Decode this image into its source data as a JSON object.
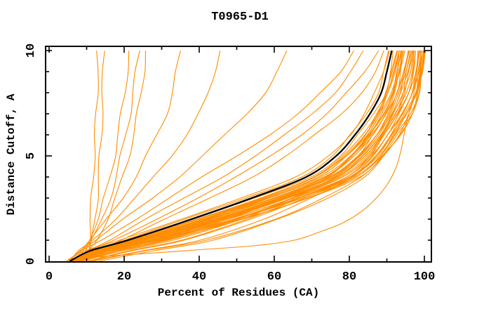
{
  "figure": {
    "background": "#FFFFFF"
  },
  "chart_data": {
    "type": "line",
    "title": "T0965-D1",
    "xlabel": "Percent of Residues (CA)",
    "ylabel": "Distance Cutoff, A",
    "xlim": [
      0,
      100
    ],
    "ylim": [
      0,
      10
    ],
    "x_major_ticks": [
      0,
      20,
      40,
      60,
      80,
      100
    ],
    "x_minor_step": 10,
    "y_major_ticks": [
      0,
      5,
      10
    ],
    "y_minor_step": 1,
    "grid": "off",
    "legend": "none",
    "colors": {
      "model_curves": "#FF8C00",
      "reference_curve": "#000000",
      "axis": "#000000"
    },
    "y_grid": [
      0,
      0.5,
      1,
      2,
      3,
      4,
      5,
      6,
      7,
      8,
      9,
      10
    ],
    "reference_curve": {
      "name": "reference-model",
      "xs": [
        5.5,
        11,
        21,
        38,
        54,
        68.5,
        76.5,
        81.5,
        85.5,
        88.5,
        90,
        91.3
      ]
    },
    "model_curves": [
      {
        "xs": [
          10,
          10.3,
          10.7,
          11,
          11.4,
          11.7,
          12,
          12.3,
          12.6,
          12.8,
          12.9,
          13
        ]
      },
      {
        "xs": [
          10.5,
          11,
          11.5,
          12.2,
          12.8,
          13.2,
          13.6,
          13.9,
          14.1,
          14.3,
          14.4,
          14.5
        ]
      },
      {
        "xs": [
          8,
          9,
          10.5,
          13,
          14.8,
          16.2,
          17.4,
          18.4,
          19.3,
          20.1,
          20.8,
          21.5
        ]
      },
      {
        "xs": [
          8.5,
          9.8,
          11.5,
          14.2,
          16.2,
          17.8,
          19.2,
          20.4,
          21.5,
          22.4,
          23.2,
          24
        ]
      },
      {
        "xs": [
          9,
          10.5,
          12.5,
          15.5,
          17.8,
          19.6,
          21.2,
          22.5,
          23.6,
          24.5,
          25.2,
          25.8
        ]
      },
      {
        "xs": [
          7,
          8.5,
          11,
          15.5,
          19.5,
          23,
          26,
          28.8,
          31.2,
          32.8,
          34,
          35
        ]
      },
      {
        "xs": [
          6,
          8,
          11.5,
          17.5,
          23,
          28,
          32.5,
          36.5,
          40,
          42.5,
          44,
          45.5
        ]
      },
      {
        "xs": [
          5,
          8,
          12.5,
          20,
          27.5,
          34.5,
          41,
          47,
          52.5,
          57.5,
          61,
          63.5
        ]
      },
      {
        "xs": [
          5,
          9,
          14,
          23,
          32,
          41,
          50,
          58.5,
          66.5,
          72.5,
          77.5,
          81
        ]
      },
      {
        "xs": [
          5.5,
          10,
          16,
          26,
          36,
          46,
          55,
          63,
          70,
          76,
          80.5,
          84
        ]
      },
      {
        "xs": [
          6,
          11,
          17.5,
          28.5,
          39.5,
          50,
          59,
          67,
          74,
          79.5,
          84,
          87.5
        ]
      },
      {
        "xs": [
          6,
          12,
          19,
          31,
          43,
          54,
          63,
          71,
          78,
          83,
          87,
          89.5
        ]
      },
      {
        "xs": [
          6,
          12,
          23,
          41,
          57.5,
          72,
          79.5,
          84,
          87.5,
          90,
          91.5,
          92.5
        ]
      },
      {
        "xs": [
          6.5,
          13,
          24.5,
          43.5,
          60.5,
          74.5,
          82,
          86.5,
          90,
          92.5,
          93.5,
          94.5
        ]
      },
      {
        "xs": [
          7,
          14,
          26,
          46,
          63,
          77,
          84.5,
          89,
          92.5,
          95,
          96,
          97
        ]
      },
      {
        "xs": [
          7.5,
          15,
          28,
          49,
          66.5,
          80,
          87,
          91.5,
          95,
          97.5,
          98.5,
          99.5
        ]
      },
      {
        "xs": [
          5.5,
          11.5,
          22,
          39.5,
          56,
          70.5,
          78.5,
          83.5,
          87,
          90,
          91.5,
          92.5
        ]
      },
      {
        "xs": [
          6.5,
          12.5,
          24,
          42.5,
          59,
          73.5,
          81,
          85.5,
          89,
          91.5,
          93,
          94
        ]
      },
      {
        "xs": [
          6.5,
          13.5,
          25,
          45,
          62,
          75.5,
          83,
          87.5,
          91,
          93.5,
          95,
          96
        ]
      },
      {
        "xs": [
          7.5,
          14.5,
          27,
          47.5,
          65,
          78.5,
          85.5,
          90,
          93.5,
          96,
          97.5,
          98.5
        ]
      },
      {
        "xs": [
          7.5,
          15.5,
          29,
          50,
          67.5,
          81.5,
          88.5,
          92.5,
          96,
          98.4,
          99.2,
          99.8
        ]
      },
      {
        "xs": [
          6,
          12,
          22.5,
          40.5,
          57,
          71,
          79,
          84,
          87.5,
          90.5,
          92,
          93
        ]
      },
      {
        "xs": [
          5.5,
          10.5,
          20,
          36.5,
          52.5,
          67,
          75.5,
          80.5,
          84.5,
          87.5,
          89.3,
          90.7
        ]
      },
      {
        "xs": [
          5,
          10,
          19,
          35,
          51,
          66,
          74.5,
          80,
          84,
          87,
          89,
          90.4
        ]
      },
      {
        "xs": [
          5.5,
          11,
          21.5,
          38.5,
          55,
          69.5,
          77.5,
          82.5,
          86.5,
          89.5,
          91,
          92
        ]
      },
      {
        "xs": [
          6.5,
          13,
          25,
          44,
          61,
          75,
          82.5,
          87,
          90.5,
          93,
          94.5,
          95.5
        ]
      },
      {
        "xs": [
          7,
          14,
          26.5,
          47,
          64,
          78,
          85,
          89.5,
          93,
          95.5,
          97,
          98
        ]
      },
      {
        "xs": [
          8,
          16,
          29.5,
          51,
          68.5,
          82,
          89,
          93.5,
          96.5,
          98.5,
          99.5,
          100
        ]
      },
      {
        "xs": [
          6,
          12,
          23,
          41.5,
          58,
          72.5,
          80,
          85,
          88.5,
          91,
          92.5,
          93.5
        ]
      },
      {
        "xs": [
          7,
          14,
          26,
          45.5,
          62.5,
          76.5,
          84,
          88.5,
          92,
          94.5,
          95.5,
          96.5
        ]
      },
      {
        "xs": [
          7.5,
          15,
          28,
          49,
          67,
          80.5,
          87.5,
          92,
          95.5,
          98,
          99,
          100
        ]
      },
      {
        "xs": [
          8,
          18,
          30,
          48,
          62,
          74,
          81,
          86,
          89.5,
          92,
          93.5,
          94.5
        ]
      },
      {
        "xs": [
          9,
          20,
          33,
          51,
          65,
          77,
          84,
          88.5,
          92,
          94.5,
          96,
          97
        ]
      },
      {
        "xs": [
          10,
          22,
          36,
          54,
          68,
          80,
          86.5,
          90.5,
          94,
          96.5,
          98,
          99
        ]
      },
      {
        "xs": [
          12,
          26,
          42,
          60,
          73,
          83.5,
          89,
          93,
          96,
          98,
          99.3,
          100
        ]
      },
      {
        "xs": [
          6,
          12.5,
          23.5,
          42,
          58.5,
          73,
          80.5,
          85.5,
          89,
          91.5,
          93,
          94
        ]
      },
      {
        "xs": [
          7,
          13.5,
          25.5,
          44.5,
          61.5,
          75.5,
          83,
          87.5,
          91,
          93.5,
          95,
          96
        ]
      },
      {
        "xs": [
          7.5,
          15,
          27.5,
          48,
          65.5,
          79,
          86,
          90.5,
          94,
          96.5,
          98,
          99
        ]
      },
      {
        "xs": [
          6.5,
          13,
          24,
          43,
          60,
          74,
          81.5,
          86,
          89.5,
          92,
          93.5,
          94.5
        ]
      },
      {
        "xs": [
          8,
          16.5,
          30,
          50,
          67,
          81,
          88,
          92,
          95.5,
          97.5,
          98.8,
          99.5
        ]
      },
      {
        "xs": [
          5.5,
          11.5,
          22,
          40,
          56.5,
          71,
          79,
          84,
          87.5,
          90.5,
          92,
          93
        ]
      },
      {
        "xs": [
          7,
          14.5,
          27,
          46.5,
          63.5,
          77.5,
          84.5,
          89,
          92.5,
          95,
          96.5,
          97.5
        ]
      },
      {
        "xs": [
          13,
          28,
          44,
          61,
          74,
          84,
          89.5,
          93.5,
          96.5,
          98.3,
          99.4,
          100
        ]
      },
      {
        "xs": [
          11,
          25,
          40,
          57,
          70,
          81,
          87,
          91,
          94.5,
          96.8,
          98.2,
          99.2
        ]
      },
      {
        "xs": [
          6,
          12,
          23.5,
          42.5,
          59.5,
          73.5,
          81,
          85.5,
          89,
          91.5,
          93,
          94
        ]
      },
      {
        "xs": [
          7,
          14,
          26.5,
          46,
          63,
          77,
          84,
          88.5,
          92,
          94.5,
          96,
          97
        ]
      },
      {
        "xs": [
          8,
          17,
          31,
          52,
          69,
          82.5,
          89,
          93,
          96.5,
          98.5,
          99.5,
          100
        ]
      },
      {
        "xs": [
          6.5,
          13.5,
          25,
          44,
          61,
          75,
          82.5,
          87,
          90.5,
          93,
          94.5,
          95.5
        ]
      },
      {
        "xs": [
          7.5,
          15.5,
          28.5,
          49.5,
          66.5,
          80,
          87,
          91.5,
          95,
          97.5,
          98.5,
          99.5
        ]
      },
      {
        "xs": [
          9,
          19,
          32,
          50,
          64.5,
          76.5,
          83.5,
          88,
          91.5,
          94,
          95.5,
          96.5
        ]
      },
      {
        "xs": [
          10,
          21,
          35,
          53,
          67,
          79,
          85.5,
          89.5,
          93,
          95.5,
          97,
          98
        ]
      },
      {
        "xs": [
          6,
          12.5,
          23,
          41,
          57.5,
          72,
          79.5,
          84.5,
          88,
          90.5,
          92,
          93
        ]
      },
      {
        "points": [
          [
            5,
            0.1
          ],
          [
            20,
            0.3
          ],
          [
            40,
            0.55
          ],
          [
            55,
            0.75
          ],
          [
            65,
            1.0
          ],
          [
            72,
            1.4
          ],
          [
            78,
            1.8
          ],
          [
            83,
            2.3
          ],
          [
            87,
            2.9
          ],
          [
            90,
            3.6
          ],
          [
            92,
            4.4
          ],
          [
            93.5,
            5.2
          ],
          [
            94.8,
            6
          ],
          [
            95.8,
            6.8
          ],
          [
            96.6,
            7.6
          ],
          [
            97.3,
            8.4
          ],
          [
            98,
            9.2
          ],
          [
            98.6,
            10
          ]
        ]
      }
    ]
  }
}
